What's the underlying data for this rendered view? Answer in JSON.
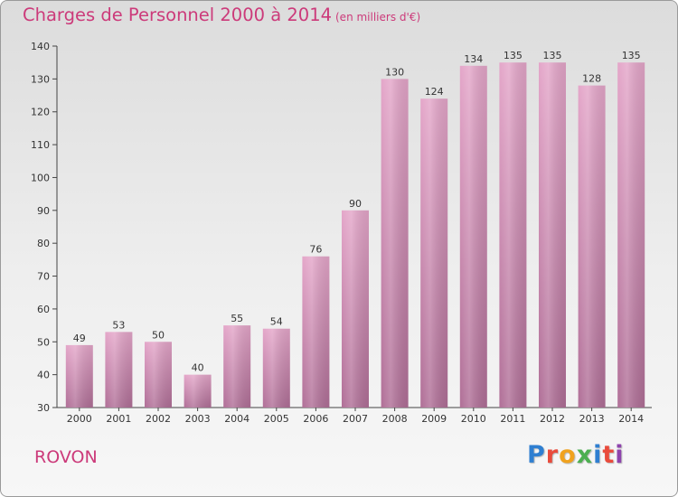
{
  "chart_data": {
    "type": "bar",
    "title": "Charges de Personnel 2000 à 2014",
    "subtitle": "(en milliers d'€)",
    "categories": [
      "2000",
      "2001",
      "2002",
      "2003",
      "2004",
      "2005",
      "2006",
      "2007",
      "2008",
      "2009",
      "2010",
      "2011",
      "2012",
      "2013",
      "2014"
    ],
    "values": [
      49,
      53,
      50,
      40,
      55,
      54,
      76,
      90,
      130,
      124,
      134,
      135,
      135,
      128,
      135
    ],
    "data_labels": [
      "49",
      "53",
      "50",
      "40",
      "55",
      "54",
      "76",
      "90",
      "130",
      "124",
      "134",
      "135",
      "135",
      "128",
      "135"
    ],
    "yticks": [
      "30",
      "40",
      "50",
      "60",
      "70",
      "80",
      "90",
      "100",
      "110",
      "120",
      "130",
      "140"
    ],
    "ylim": [
      30,
      140
    ],
    "grid": false,
    "legend": "none",
    "bar_color_top": "#e4a6c9",
    "bar_color_bottom": "#b06f97"
  },
  "footer": {
    "commune": "ROVON"
  },
  "logo": {
    "letters": [
      "P",
      "r",
      "o",
      "x",
      "i",
      "t",
      "i"
    ]
  }
}
